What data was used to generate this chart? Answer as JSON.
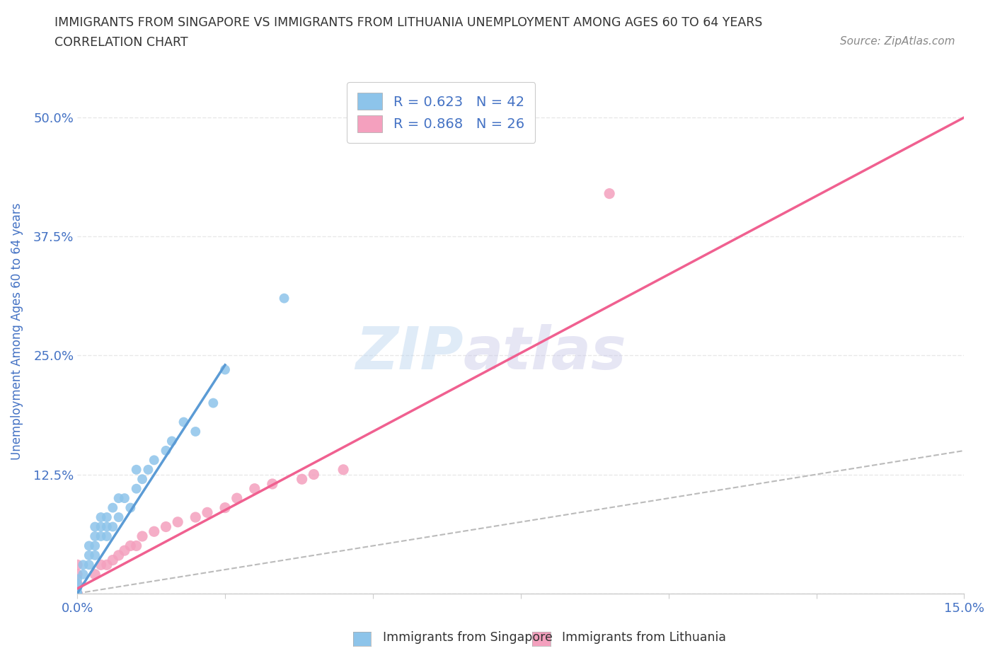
{
  "title_line1": "IMMIGRANTS FROM SINGAPORE VS IMMIGRANTS FROM LITHUANIA UNEMPLOYMENT AMONG AGES 60 TO 64 YEARS",
  "title_line2": "CORRELATION CHART",
  "source_text": "Source: ZipAtlas.com",
  "ylabel": "Unemployment Among Ages 60 to 64 years",
  "watermark_zip": "ZIP",
  "watermark_atlas": "atlas",
  "legend_r1": "R = 0.623   N = 42",
  "legend_r2": "R = 0.868   N = 26",
  "xlim": [
    0.0,
    0.15
  ],
  "ylim": [
    0.0,
    0.55
  ],
  "xticks": [
    0.0,
    0.025,
    0.05,
    0.075,
    0.1,
    0.125,
    0.15
  ],
  "xticklabels": [
    "0.0%",
    "",
    "",
    "",
    "",
    "",
    "15.0%"
  ],
  "yticks": [
    0.0,
    0.125,
    0.25,
    0.375,
    0.5
  ],
  "yticklabels": [
    "",
    "12.5%",
    "25.0%",
    "37.5%",
    "50.0%"
  ],
  "color_singapore": "#8DC4EA",
  "color_lithuania": "#F4A0BE",
  "color_trend_singapore": "#5B9BD5",
  "color_trend_lithuania": "#F06090",
  "color_diagonal": "#BBBBBB",
  "singapore_x": [
    0.0,
    0.0,
    0.0,
    0.0,
    0.0,
    0.0,
    0.0,
    0.0,
    0.0,
    0.001,
    0.001,
    0.002,
    0.002,
    0.002,
    0.003,
    0.003,
    0.003,
    0.003,
    0.004,
    0.004,
    0.004,
    0.005,
    0.005,
    0.005,
    0.006,
    0.006,
    0.007,
    0.007,
    0.008,
    0.009,
    0.01,
    0.01,
    0.011,
    0.012,
    0.013,
    0.015,
    0.016,
    0.018,
    0.02,
    0.023,
    0.025,
    0.035
  ],
  "singapore_y": [
    0.0,
    0.0,
    0.0,
    0.0,
    0.0,
    0.0,
    0.005,
    0.01,
    0.015,
    0.02,
    0.03,
    0.03,
    0.04,
    0.05,
    0.04,
    0.05,
    0.06,
    0.07,
    0.06,
    0.07,
    0.08,
    0.06,
    0.07,
    0.08,
    0.07,
    0.09,
    0.08,
    0.1,
    0.1,
    0.09,
    0.11,
    0.13,
    0.12,
    0.13,
    0.14,
    0.15,
    0.16,
    0.18,
    0.17,
    0.2,
    0.235,
    0.31
  ],
  "lithuania_x": [
    0.0,
    0.0,
    0.0,
    0.0,
    0.003,
    0.004,
    0.005,
    0.006,
    0.007,
    0.008,
    0.009,
    0.01,
    0.011,
    0.013,
    0.015,
    0.017,
    0.02,
    0.022,
    0.025,
    0.027,
    0.03,
    0.033,
    0.038,
    0.04,
    0.045,
    0.09
  ],
  "lithuania_y": [
    0.0,
    0.01,
    0.02,
    0.03,
    0.02,
    0.03,
    0.03,
    0.035,
    0.04,
    0.045,
    0.05,
    0.05,
    0.06,
    0.065,
    0.07,
    0.075,
    0.08,
    0.085,
    0.09,
    0.1,
    0.11,
    0.115,
    0.12,
    0.125,
    0.13,
    0.42
  ],
  "sg_trend_x": [
    0.0,
    0.025
  ],
  "sg_trend_y": [
    0.0,
    0.24
  ],
  "lt_trend_x": [
    0.0,
    0.15
  ],
  "lt_trend_y": [
    0.005,
    0.5
  ],
  "grid_color": "#E8E8E8",
  "bg_color": "#FFFFFF",
  "title_color": "#333333",
  "axis_label_color": "#4472C4",
  "tick_color": "#4472C4"
}
